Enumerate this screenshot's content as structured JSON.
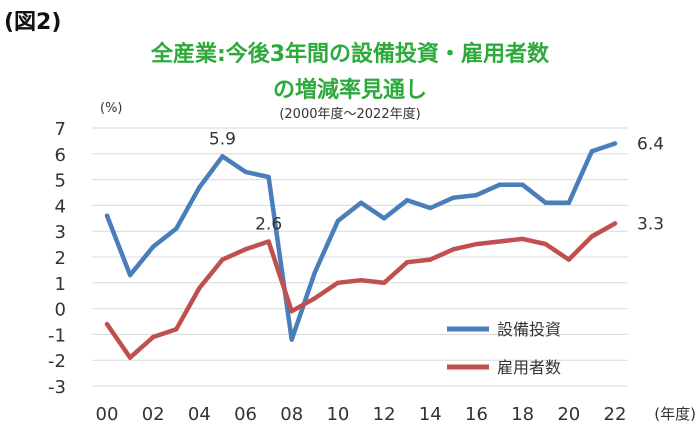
{
  "figure_label": "(図2)",
  "title_line1": "全産業:今後3年間の設備投資・雇用者数",
  "title_line2": "の増減率見通し",
  "subtitle": "(2000年度〜2022年度)",
  "colors": {
    "title": "#2eaa3c",
    "capex": "#4a7ebb",
    "employment": "#c0504d"
  },
  "chart_data": {
    "type": "line",
    "title": "全産業:今後3年間の設備投資・雇用者数の増減率見通し",
    "subtitle": "(2000年度〜2022年度)",
    "ylabel": "(%)",
    "xlabel": "(年度)",
    "ylim": [
      -3,
      7
    ],
    "y_ticks": [
      7,
      6,
      5,
      4,
      3,
      2,
      1,
      0,
      -1,
      -2,
      -3
    ],
    "x": [
      "00",
      "01",
      "02",
      "03",
      "04",
      "05",
      "06",
      "07",
      "08",
      "09",
      "10",
      "11",
      "12",
      "13",
      "14",
      "15",
      "16",
      "17",
      "18",
      "19",
      "20",
      "21",
      "22"
    ],
    "x_tick_labels": [
      "00",
      "02",
      "04",
      "06",
      "08",
      "10",
      "12",
      "14",
      "16",
      "18",
      "20",
      "22"
    ],
    "grid": "horizontal",
    "legend_position": "bottom-right",
    "series": [
      {
        "name": "設備投資",
        "color": "#4a7ebb",
        "values": [
          3.6,
          1.3,
          2.4,
          3.1,
          4.7,
          5.9,
          5.3,
          5.1,
          -1.2,
          1.4,
          3.4,
          4.1,
          3.5,
          4.2,
          3.9,
          4.3,
          4.4,
          4.8,
          4.8,
          4.1,
          4.1,
          6.1,
          6.4
        ]
      },
      {
        "name": "雇用者数",
        "color": "#c0504d",
        "values": [
          -0.6,
          -1.9,
          -1.1,
          -0.8,
          0.8,
          1.9,
          2.3,
          2.6,
          -0.1,
          0.4,
          1.0,
          1.1,
          1.0,
          1.8,
          1.9,
          2.3,
          2.5,
          2.6,
          2.7,
          2.5,
          1.9,
          2.8,
          3.3
        ]
      }
    ],
    "annotations": [
      {
        "series": 0,
        "index": 5,
        "text": "5.9"
      },
      {
        "series": 1,
        "index": 7,
        "text": "2.6"
      },
      {
        "series": 0,
        "index": 22,
        "text": "6.4"
      },
      {
        "series": 1,
        "index": 22,
        "text": "3.3"
      }
    ]
  }
}
